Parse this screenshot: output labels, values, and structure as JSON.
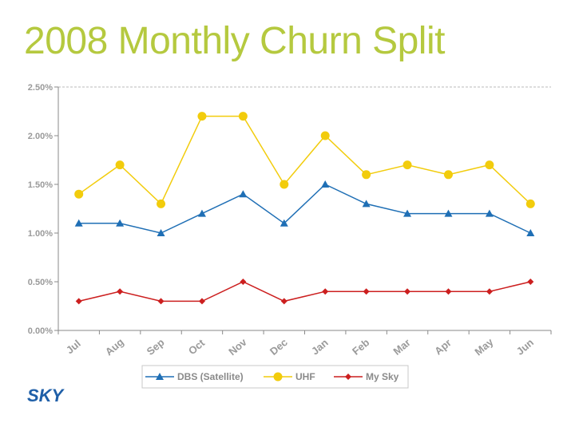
{
  "title": "2008 Monthly Churn Split",
  "logo_text": "SKY",
  "chart_data": {
    "type": "line",
    "x": [
      "Jul",
      "Aug",
      "Sep",
      "Oct",
      "Nov",
      "Dec",
      "Jan",
      "Feb",
      "Mar",
      "Apr",
      "May",
      "Jun"
    ],
    "yticks": [
      "0.00%",
      "0.50%",
      "1.00%",
      "1.50%",
      "2.00%",
      "2.50%"
    ],
    "ylim": [
      0,
      2.5
    ],
    "ylabel_unit": "%",
    "grid": "top dashed line only",
    "legend_position": "bottom",
    "series": [
      {
        "name": "DBS (Satellite)",
        "color": "#1f6fb5",
        "marker": "triangle",
        "values": [
          1.1,
          1.1,
          1.0,
          1.2,
          1.4,
          1.1,
          1.5,
          1.3,
          1.2,
          1.2,
          1.2,
          1.0
        ]
      },
      {
        "name": "UHF",
        "color": "#f2cc0c",
        "marker": "circle",
        "values": [
          1.4,
          1.7,
          1.3,
          2.2,
          2.2,
          1.5,
          2.0,
          1.6,
          1.7,
          1.6,
          1.7,
          1.3
        ]
      },
      {
        "name": "My Sky",
        "color": "#cc1f1f",
        "marker": "diamond",
        "values": [
          0.3,
          0.4,
          0.3,
          0.3,
          0.5,
          0.3,
          0.4,
          0.4,
          0.4,
          0.4,
          0.4,
          0.5
        ]
      }
    ]
  }
}
